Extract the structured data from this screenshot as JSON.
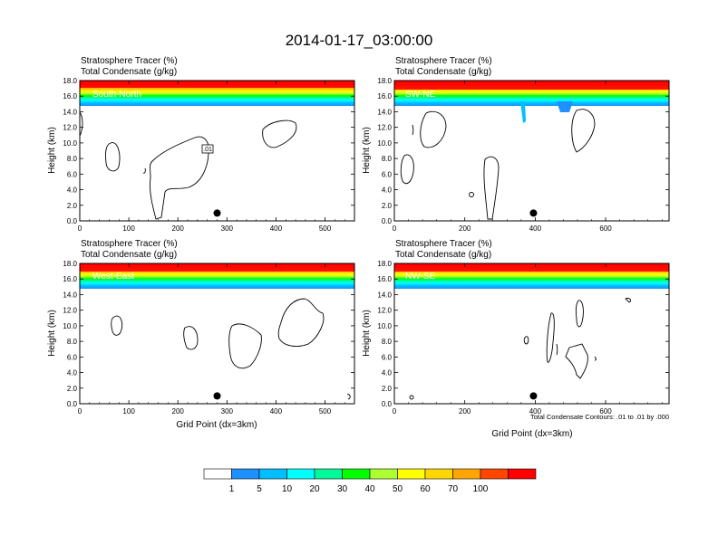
{
  "figure_title": "2014-01-17_03:00:00",
  "panel_title_line1": "Stratosphere Tracer   (%)",
  "panel_title_line2": "Total Condensate   (g/kg)",
  "y_axis_label": "Height (km)",
  "x_axis_label": "Grid Point (dx=3km)",
  "contour_info": "Total Condensate Contours: .01 to .01 by .000",
  "colorbar": {
    "labels": [
      "1",
      "5",
      "10",
      "20",
      "30",
      "40",
      "50",
      "60",
      "70",
      "100"
    ],
    "colors": [
      "#ffffff",
      "#1e90ff",
      "#00bfff",
      "#00ffff",
      "#00fa9a",
      "#00ff00",
      "#adff2f",
      "#ffff00",
      "#ffd700",
      "#ffa500",
      "#ff4500",
      "#ff0000"
    ]
  },
  "chart_data": [
    {
      "type": "contour",
      "panel_label": "South-North",
      "contour_label": ".01",
      "xlim": [
        0,
        560
      ],
      "ylim": [
        0,
        18
      ],
      "x_ticks": [
        0,
        100,
        200,
        300,
        400,
        500
      ],
      "y_ticks": [
        "0.0",
        "2.0",
        "4.0",
        "6.0",
        "8.0",
        "10.0",
        "12.0",
        "14.0",
        "16.0",
        "18.0"
      ],
      "marker_x": 280,
      "marker_y": 1.0
    },
    {
      "type": "contour",
      "panel_label": "SW-NE",
      "xlim": [
        0,
        780
      ],
      "ylim": [
        0,
        18
      ],
      "x_ticks": [
        0,
        200,
        400,
        600
      ],
      "y_ticks": [
        "0.0",
        "2.0",
        "4.0",
        "6.0",
        "8.0",
        "10.0",
        "12.0",
        "14.0",
        "16.0",
        "18.0"
      ],
      "marker_x": 395,
      "marker_y": 1.0
    },
    {
      "type": "contour",
      "panel_label": "West-East",
      "xlim": [
        0,
        560
      ],
      "ylim": [
        0,
        18
      ],
      "x_ticks": [
        0,
        100,
        200,
        300,
        400,
        500
      ],
      "y_ticks": [
        "0.0",
        "2.0",
        "4.0",
        "6.0",
        "8.0",
        "10.0",
        "12.0",
        "14.0",
        "16.0",
        "18.0"
      ],
      "marker_x": 280,
      "marker_y": 1.0
    },
    {
      "type": "contour",
      "panel_label": "NW-SE",
      "xlim": [
        0,
        780
      ],
      "ylim": [
        0,
        18
      ],
      "x_ticks": [
        0,
        200,
        400,
        600
      ],
      "y_ticks": [
        "0.0",
        "2.0",
        "4.0",
        "6.0",
        "8.0",
        "10.0",
        "12.0",
        "14.0",
        "16.0",
        "18.0"
      ],
      "marker_x": 395,
      "marker_y": 1.0
    }
  ]
}
